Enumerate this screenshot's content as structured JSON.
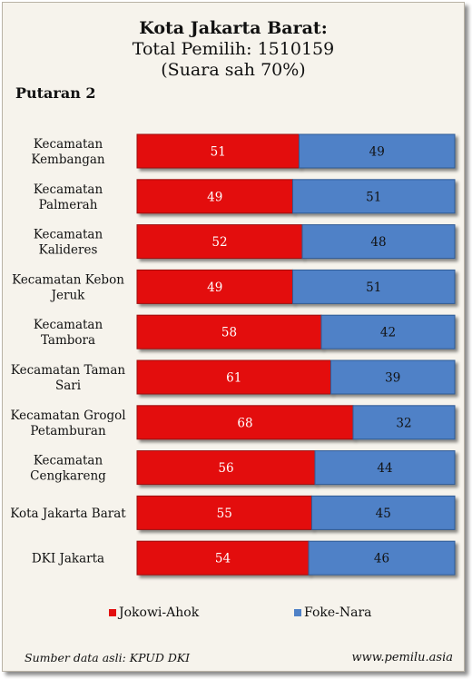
{
  "chart_data": {
    "type": "bar",
    "stacked": true,
    "orientation": "horizontal",
    "title": "Kota Jakarta Barat:",
    "subtitle_lines": [
      "Total Pemilih: 1510159",
      "(Suara sah 70%)"
    ],
    "round_label": "Putaran 2",
    "categories": [
      [
        "Kecamatan",
        "Kembangan"
      ],
      [
        "Kecamatan",
        "Palmerah"
      ],
      [
        "Kecamatan",
        "Kalideres"
      ],
      [
        "Kecamatan Kebon",
        "Jeruk"
      ],
      [
        "Kecamatan",
        "Tambora"
      ],
      [
        "Kecamatan Taman",
        "Sari"
      ],
      [
        "Kecamatan Grogol",
        "Petamburan"
      ],
      [
        "Kecamatan",
        "Cengkareng"
      ],
      [
        "Kota Jakarta Barat"
      ],
      [
        "DKI Jakarta"
      ]
    ],
    "series": [
      {
        "name": "Jokowi-Ahok",
        "color": "#e31010",
        "values": [
          51,
          49,
          52,
          49,
          58,
          61,
          68,
          56,
          55,
          54
        ]
      },
      {
        "name": "Foke-Nara",
        "color": "#4f81c7",
        "values": [
          49,
          51,
          48,
          51,
          42,
          39,
          32,
          44,
          45,
          46
        ]
      }
    ],
    "xlim": [
      0,
      100
    ],
    "legend_position": "bottom",
    "grid": false
  },
  "footer": {
    "source": "Sumber data asli: KPUD DKI",
    "site": "www.pemilu.asia"
  }
}
